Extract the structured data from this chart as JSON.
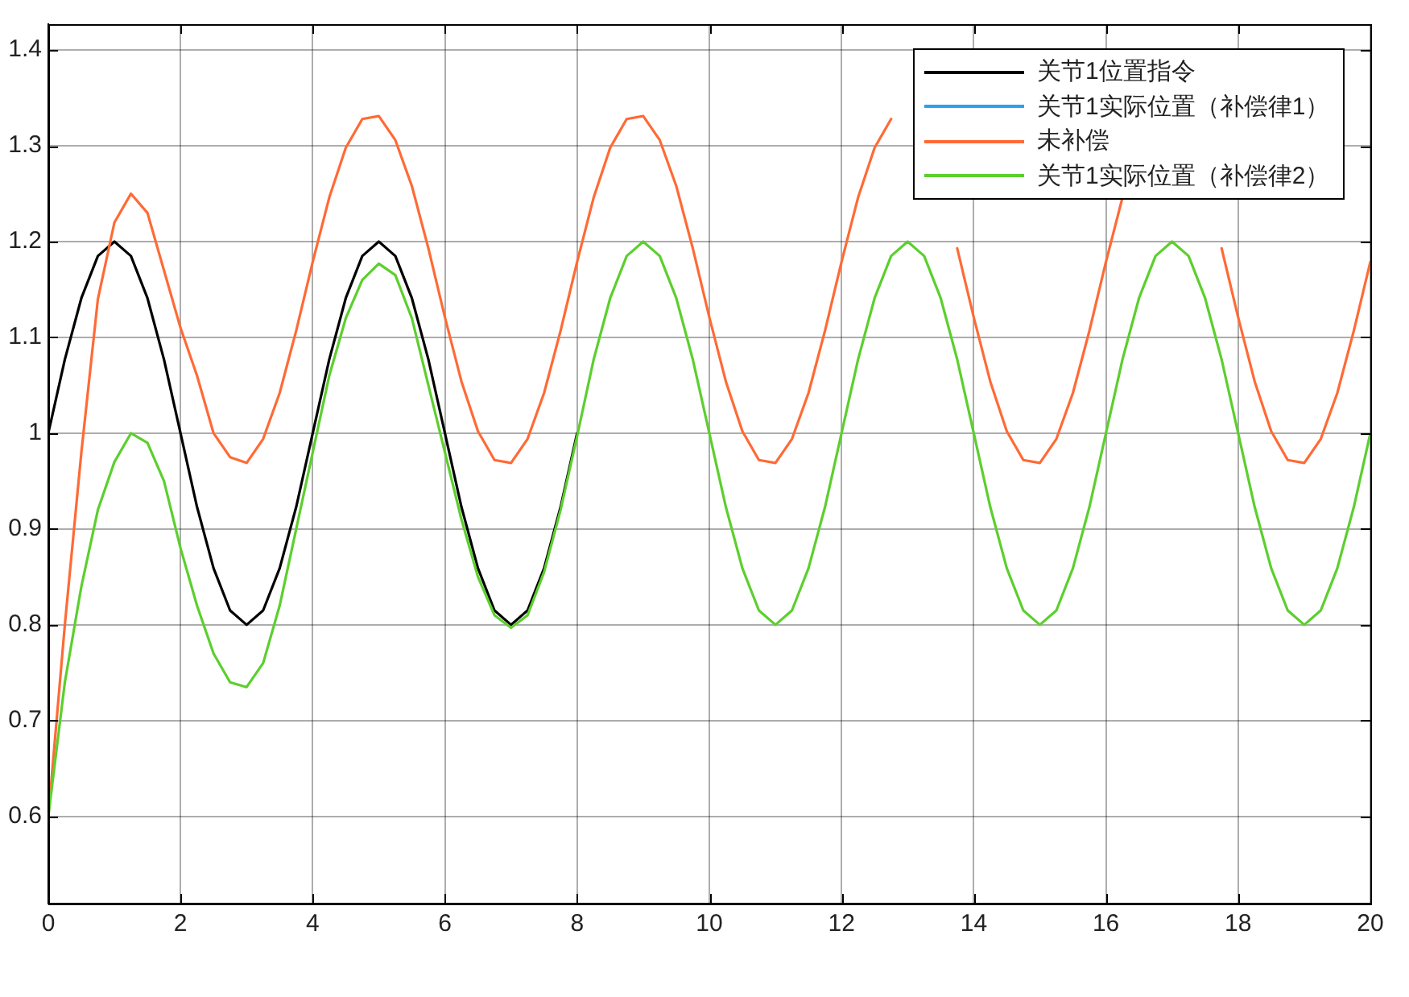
{
  "chart_data": {
    "type": "line",
    "x": [
      0,
      0.25,
      0.5,
      0.75,
      1,
      1.25,
      1.5,
      1.75,
      2,
      2.25,
      2.5,
      2.75,
      3,
      3.25,
      3.5,
      3.75,
      4,
      4.25,
      4.5,
      4.75,
      5,
      5.25,
      5.5,
      5.75,
      6,
      6.25,
      6.5,
      6.75,
      7,
      7.25,
      7.5,
      7.75,
      8,
      8.25,
      8.5,
      8.75,
      9,
      9.25,
      9.5,
      9.75,
      10,
      10.25,
      10.5,
      10.75,
      11,
      11.25,
      11.5,
      11.75,
      12,
      12.25,
      12.5,
      12.75,
      13,
      13.25,
      13.5,
      13.75,
      14,
      14.25,
      14.5,
      14.75,
      15,
      15.25,
      15.5,
      15.75,
      16,
      16.25,
      16.5,
      16.75,
      17,
      17.25,
      17.5,
      17.75,
      18,
      18.25,
      18.5,
      18.75,
      19,
      19.25,
      19.5,
      19.75,
      20
    ],
    "series": [
      {
        "name": "关节1位置指令",
        "color": "#000000",
        "values": [
          1,
          1.077,
          1.141,
          1.185,
          1.2,
          1.185,
          1.141,
          1.077,
          1,
          0.923,
          0.859,
          0.815,
          0.8,
          0.815,
          0.859,
          0.923,
          1,
          1.077,
          1.141,
          1.185,
          1.2,
          1.185,
          1.141,
          1.077,
          1,
          0.923,
          0.859,
          0.815,
          0.8,
          0.815,
          0.859,
          0.923,
          1,
          null,
          null,
          null,
          null,
          null,
          null,
          null,
          null,
          null,
          null,
          null,
          null,
          null,
          null,
          null,
          null,
          null,
          null,
          null,
          null,
          null,
          null,
          null,
          null,
          null,
          null,
          null,
          null,
          null,
          null,
          null,
          null,
          null,
          null,
          null,
          null,
          null,
          null,
          null,
          null,
          null,
          null,
          null,
          null,
          null,
          null,
          null,
          null
        ]
      },
      {
        "name": "关节1实际位置（补偿律1）",
        "color": "#2ca0f0",
        "values": [
          null,
          null,
          null,
          null,
          null,
          null,
          null,
          null,
          null,
          null,
          null,
          null,
          null,
          null,
          null,
          null,
          null,
          null,
          null,
          null,
          null,
          null,
          null,
          null,
          null,
          null,
          null,
          null,
          null,
          null,
          null,
          null,
          null,
          null,
          null,
          null,
          null,
          null,
          null,
          null,
          null,
          null,
          null,
          null,
          null,
          null,
          null,
          null,
          null,
          null,
          null,
          null,
          null,
          null,
          null,
          null,
          null,
          null,
          null,
          null,
          null,
          null,
          null,
          null,
          null,
          null,
          null,
          null,
          null,
          null,
          null,
          null,
          null,
          null,
          null,
          null,
          null,
          null,
          null,
          null,
          null
        ]
      },
      {
        "name": "未补偿",
        "color": "#ff6a35",
        "values": [
          0.6,
          0.8,
          0.98,
          1.14,
          1.22,
          1.25,
          1.23,
          1.17,
          1.11,
          1.06,
          1.0,
          0.975,
          0.969,
          0.994,
          1.042,
          1.107,
          1.179,
          1.246,
          1.298,
          1.328,
          1.331,
          1.306,
          1.258,
          1.193,
          1.121,
          1.054,
          1.002,
          0.972,
          0.969,
          0.994,
          1.042,
          1.107,
          1.179,
          1.246,
          1.298,
          1.328,
          1.331,
          1.306,
          1.258,
          1.193,
          1.121,
          1.054,
          1.002,
          0.972,
          0.969,
          0.994,
          1.042,
          1.107,
          1.179,
          1.246,
          1.298,
          1.328,
          null,
          null,
          null,
          1.193,
          1.121,
          1.054,
          1.002,
          0.972,
          0.969,
          0.994,
          1.042,
          1.107,
          1.179,
          1.246,
          null,
          null,
          null,
          null,
          null,
          1.193,
          1.121,
          1.054,
          1.002,
          0.972,
          0.969,
          0.994,
          1.042,
          1.107,
          1.179
        ]
      },
      {
        "name": "关节1实际位置（补偿律2）",
        "color": "#5ccf2e",
        "values": [
          0.6,
          0.74,
          0.84,
          0.92,
          0.97,
          1.0,
          0.99,
          0.95,
          0.88,
          0.82,
          0.77,
          0.74,
          0.735,
          0.76,
          0.82,
          0.9,
          0.98,
          1.06,
          1.12,
          1.16,
          1.177,
          1.165,
          1.12,
          1.05,
          0.98,
          0.91,
          0.85,
          0.81,
          0.797,
          0.81,
          0.855,
          0.92,
          0.997,
          1.077,
          1.141,
          1.185,
          1.2,
          1.185,
          1.141,
          1.077,
          1,
          0.923,
          0.859,
          0.815,
          0.8,
          0.815,
          0.859,
          0.923,
          1,
          1.077,
          1.141,
          1.185,
          1.2,
          1.185,
          1.141,
          1.077,
          1,
          0.923,
          0.859,
          0.815,
          0.8,
          0.815,
          0.859,
          0.923,
          1,
          1.077,
          1.141,
          1.185,
          1.2,
          1.185,
          1.141,
          1.077,
          1,
          0.923,
          0.859,
          0.815,
          0.8,
          0.815,
          0.859,
          0.923,
          1
        ]
      }
    ],
    "xlim": [
      0,
      20
    ],
    "xticks": [
      0,
      2,
      4,
      6,
      8,
      10,
      12,
      14,
      16,
      18,
      20
    ],
    "ylim": [
      0.509,
      1.427
    ],
    "yticks": [
      0.6,
      0.7,
      0.8,
      0.9,
      1,
      1.1,
      1.2,
      1.3,
      1.4
    ],
    "grid": true,
    "legend": "top right",
    "marker": "none",
    "line_style": "solid"
  }
}
